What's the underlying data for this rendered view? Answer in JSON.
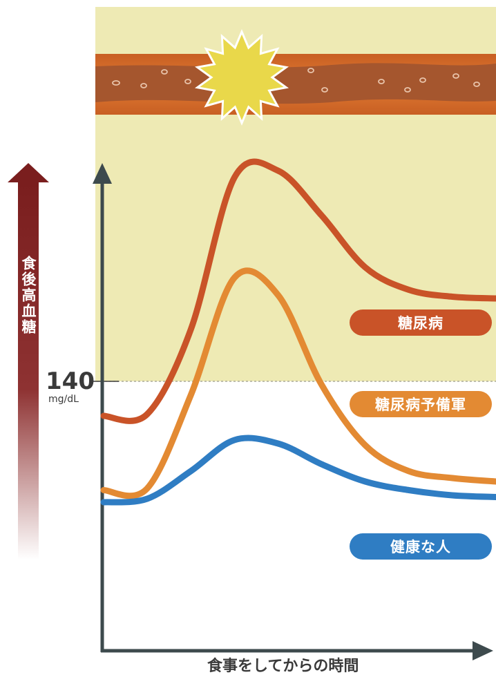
{
  "colors": {
    "highlight_zone": "#eeeab4",
    "vessel_outer": "#d06a26",
    "vessel_inner": "#a5562e",
    "burst": "#e9d84a",
    "diabetes": "#c95328",
    "prediabetes": "#e38a33",
    "healthy": "#2f7dc3",
    "axis": "#3d4a4d",
    "axis_arrow_dark": "#7a1e1e"
  },
  "icons": {
    "vessel": "blood-vessel-icon",
    "burst": "damage-burst-icon"
  },
  "y_axis_label": "食後高血糖",
  "threshold": {
    "value": "140",
    "unit": "mg/dL"
  },
  "x_axis_label": "食事をしてからの時間",
  "chart_data": {
    "type": "line",
    "title": "",
    "xlabel": "食事をしてからの時間",
    "ylabel": "食後高血糖",
    "threshold_line": 140,
    "series": [
      {
        "name": "糖尿病",
        "color": "#c95328",
        "points": [
          [
            0,
            120
          ],
          [
            1,
            121
          ],
          [
            2,
            170
          ],
          [
            3,
            258
          ],
          [
            4,
            262
          ],
          [
            5,
            236
          ],
          [
            6,
            206
          ],
          [
            7,
            193
          ],
          [
            8,
            189
          ],
          [
            9,
            188
          ]
        ]
      },
      {
        "name": "糖尿病予備軍",
        "color": "#e38a33",
        "points": [
          [
            0,
            77
          ],
          [
            1,
            78
          ],
          [
            2,
            132
          ],
          [
            3,
            200
          ],
          [
            4,
            190
          ],
          [
            5,
            138
          ],
          [
            6,
            103
          ],
          [
            7,
            88
          ],
          [
            8,
            84
          ],
          [
            9,
            82
          ]
        ]
      },
      {
        "name": "健康な人",
        "color": "#2f7dc3",
        "points": [
          [
            0,
            70
          ],
          [
            1,
            72
          ],
          [
            2,
            88
          ],
          [
            3,
            106
          ],
          [
            4,
            104
          ],
          [
            5,
            92
          ],
          [
            6,
            82
          ],
          [
            7,
            77
          ],
          [
            8,
            74
          ],
          [
            9,
            73
          ]
        ]
      }
    ]
  }
}
